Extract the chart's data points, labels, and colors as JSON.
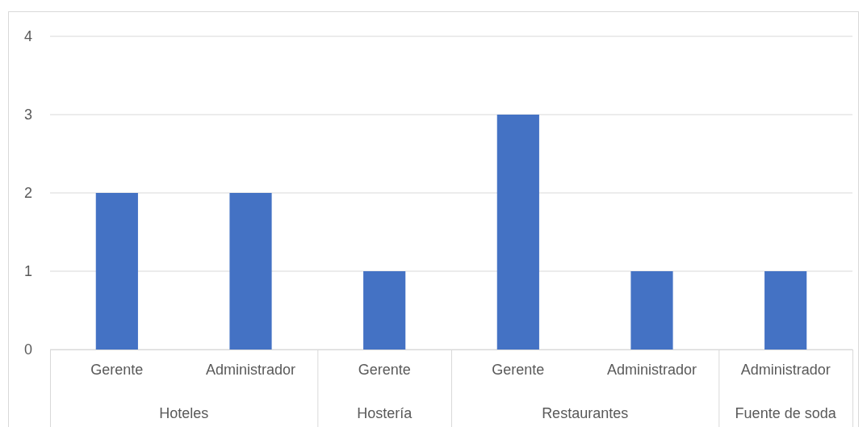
{
  "chart_data": {
    "type": "bar",
    "categories": [
      "Gerente",
      "Administrador",
      "Gerente",
      "Gerente",
      "Administrador",
      "Administrador"
    ],
    "values": [
      2,
      2,
      1,
      3,
      1,
      1
    ],
    "color": "#4472c4",
    "ylim": [
      0,
      4
    ],
    "yticks": [
      0,
      1,
      2,
      3,
      4
    ],
    "grid": "y",
    "annotations": [
      "Hoteles",
      "Hostería",
      "Restaurantes",
      "Fuente de soda"
    ]
  }
}
